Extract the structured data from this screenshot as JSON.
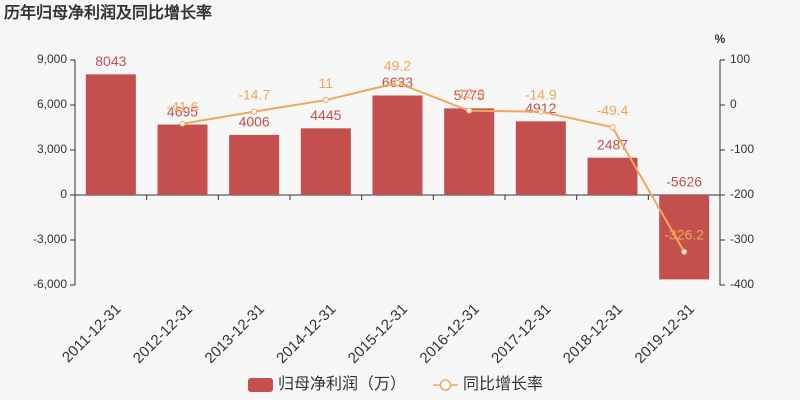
{
  "chart_data": {
    "type": "bar-line",
    "title": "历年归母净利润及同比增长率",
    "y2_label": "%",
    "categories": [
      "2011-12-31",
      "2012-12-31",
      "2013-12-31",
      "2014-12-31",
      "2015-12-31",
      "2016-12-31",
      "2017-12-31",
      "2018-12-31",
      "2019-12-31"
    ],
    "series": [
      {
        "name": "归母净利润（万）",
        "type": "bar",
        "color": "#c4504e",
        "values": [
          8043,
          4695,
          4006,
          4445,
          6633,
          5775,
          4912,
          2487,
          -5626
        ]
      },
      {
        "name": "同比增长率",
        "type": "line",
        "axis": "y2",
        "color": "#f2a65a",
        "values": [
          null,
          -41.6,
          -14.7,
          11,
          49.2,
          -12.9,
          -14.9,
          -49.4,
          -326.2
        ]
      }
    ],
    "ylim": [
      -6000,
      9000
    ],
    "yticks": [
      {
        "value": -6000,
        "label": "-6,000"
      },
      {
        "value": -3000,
        "label": "-3,000"
      },
      0,
      {
        "value": 3000,
        "label": "3,000"
      },
      {
        "value": 6000,
        "label": "6,000"
      },
      {
        "value": 9000,
        "label": "9,000"
      }
    ],
    "y2lim": [
      -400,
      100
    ],
    "y2ticks": [
      -400,
      -300,
      -200,
      -100,
      0,
      100
    ],
    "grid": false
  }
}
